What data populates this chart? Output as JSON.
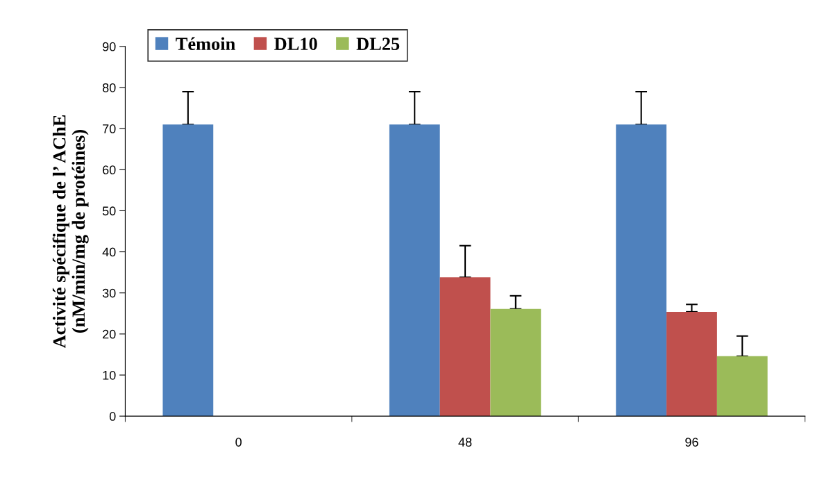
{
  "chart_data": {
    "type": "bar",
    "ylabel": "Activité spécifique de l’ AChE\n(nM/min/mg de protéines)",
    "categories": [
      "0",
      "48",
      "96"
    ],
    "series": [
      {
        "name": "Témoin",
        "color": "#4f81bd",
        "values": [
          71,
          71,
          71
        ],
        "errors": [
          [
            71,
            79
          ],
          [
            71,
            79
          ],
          [
            71,
            79
          ]
        ]
      },
      {
        "name": "DL10",
        "color": "#c0504d",
        "values": [
          null,
          33.8,
          25.4
        ],
        "errors": [
          null,
          [
            33.8,
            41.5
          ],
          [
            25.4,
            27.2
          ]
        ]
      },
      {
        "name": "DL25",
        "color": "#9bbb59",
        "values": [
          null,
          26.1,
          14.6
        ],
        "errors": [
          null,
          [
            26.1,
            29.3
          ],
          [
            14.6,
            19.5
          ]
        ]
      }
    ],
    "ylim": [
      0,
      90
    ],
    "yticks": [
      0,
      10,
      20,
      30,
      40,
      50,
      60,
      70,
      80,
      90
    ],
    "grid": false,
    "legend": "top left"
  }
}
